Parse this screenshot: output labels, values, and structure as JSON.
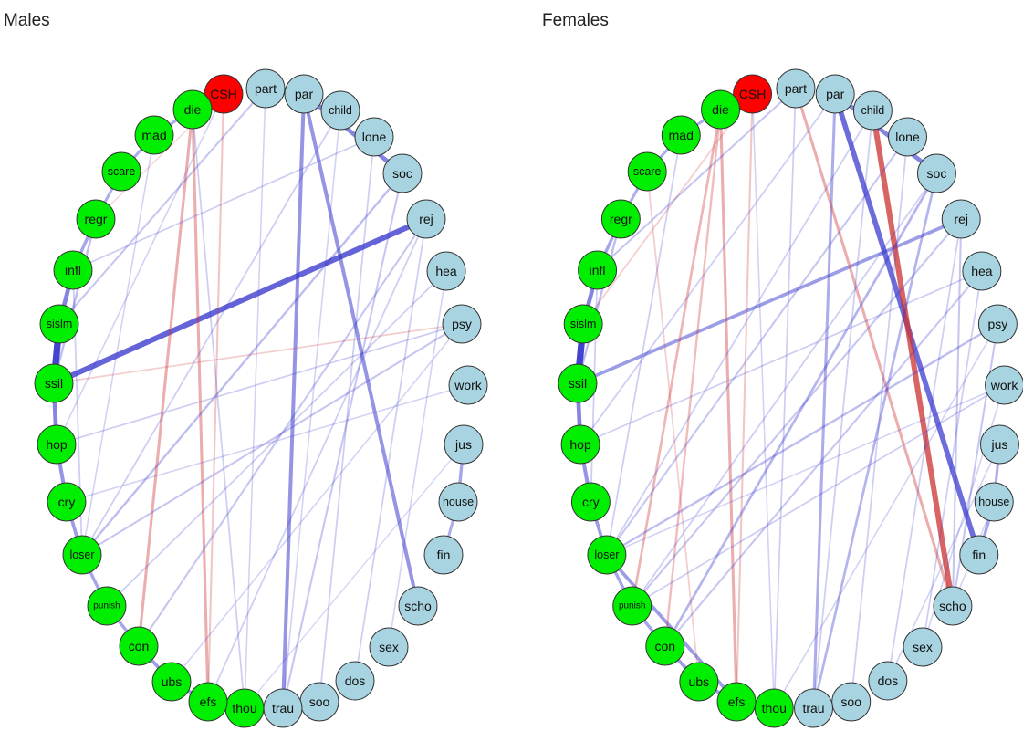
{
  "panels": [
    {
      "id": "males",
      "title": "Males"
    },
    {
      "id": "females",
      "title": "Females"
    }
  ],
  "colors": {
    "csh_node": "#ff0000",
    "left_group_node": "#00ee00",
    "right_group_node": "#a8d3e0",
    "positive_edge": "#3333cc",
    "negative_edge": "#cc3333",
    "node_border": "#333333"
  },
  "nodes": [
    {
      "id": "CSH",
      "label": "CSH",
      "group": "csh"
    },
    {
      "id": "part",
      "label": "part",
      "group": "right"
    },
    {
      "id": "par",
      "label": "par",
      "group": "right"
    },
    {
      "id": "child",
      "label": "child",
      "group": "right"
    },
    {
      "id": "lone",
      "label": "lone",
      "group": "right"
    },
    {
      "id": "soc",
      "label": "soc",
      "group": "right"
    },
    {
      "id": "rej",
      "label": "rej",
      "group": "right"
    },
    {
      "id": "hea",
      "label": "hea",
      "group": "right"
    },
    {
      "id": "psy",
      "label": "psy",
      "group": "right"
    },
    {
      "id": "work",
      "label": "work",
      "group": "right"
    },
    {
      "id": "jus",
      "label": "jus",
      "group": "right"
    },
    {
      "id": "house",
      "label": "house",
      "group": "right"
    },
    {
      "id": "fin",
      "label": "fin",
      "group": "right"
    },
    {
      "id": "scho",
      "label": "scho",
      "group": "right"
    },
    {
      "id": "sex",
      "label": "sex",
      "group": "right"
    },
    {
      "id": "dos",
      "label": "dos",
      "group": "right"
    },
    {
      "id": "soo",
      "label": "soo",
      "group": "right"
    },
    {
      "id": "trau",
      "label": "trau",
      "group": "right"
    },
    {
      "id": "thou",
      "label": "thou",
      "group": "left"
    },
    {
      "id": "efs",
      "label": "efs",
      "group": "left"
    },
    {
      "id": "ubs",
      "label": "ubs",
      "group": "left"
    },
    {
      "id": "con",
      "label": "con",
      "group": "left"
    },
    {
      "id": "punish",
      "label": "punish",
      "group": "left"
    },
    {
      "id": "loser",
      "label": "loser",
      "group": "left"
    },
    {
      "id": "cry",
      "label": "cry",
      "group": "left"
    },
    {
      "id": "hop",
      "label": "hop",
      "group": "left"
    },
    {
      "id": "ssil",
      "label": "ssil",
      "group": "left"
    },
    {
      "id": "sislm",
      "label": "sislm",
      "group": "left"
    },
    {
      "id": "infl",
      "label": "infl",
      "group": "left"
    },
    {
      "id": "regr",
      "label": "regr",
      "group": "left"
    },
    {
      "id": "scare",
      "label": "scare",
      "group": "left"
    },
    {
      "id": "mad",
      "label": "mad",
      "group": "left"
    },
    {
      "id": "die",
      "label": "die",
      "group": "left"
    }
  ],
  "edges": {
    "males": [
      {
        "source": "ssil",
        "target": "rej",
        "weight": 0.8,
        "sign": "positive"
      },
      {
        "source": "par",
        "target": "soc",
        "weight": 0.6,
        "sign": "positive"
      },
      {
        "source": "par",
        "target": "trau",
        "weight": 0.5,
        "sign": "positive"
      },
      {
        "source": "par",
        "target": "scho",
        "weight": 0.5,
        "sign": "positive"
      },
      {
        "source": "sislm",
        "target": "ssil",
        "weight": 1.0,
        "sign": "positive"
      },
      {
        "source": "ssil",
        "target": "hop",
        "weight": 0.6,
        "sign": "positive"
      },
      {
        "source": "infl",
        "target": "sislm",
        "weight": 0.6,
        "sign": "positive"
      },
      {
        "source": "hop",
        "target": "cry",
        "weight": 0.5,
        "sign": "positive"
      },
      {
        "source": "cry",
        "target": "loser",
        "weight": 0.45,
        "sign": "positive"
      },
      {
        "source": "loser",
        "target": "punish",
        "weight": 0.4,
        "sign": "positive"
      },
      {
        "source": "punish",
        "target": "con",
        "weight": 0.4,
        "sign": "positive"
      },
      {
        "source": "con",
        "target": "ubs",
        "weight": 0.45,
        "sign": "positive"
      },
      {
        "source": "ubs",
        "target": "efs",
        "weight": 0.45,
        "sign": "positive"
      },
      {
        "source": "efs",
        "target": "thou",
        "weight": 0.45,
        "sign": "positive"
      },
      {
        "source": "regr",
        "target": "infl",
        "weight": 0.4,
        "sign": "positive"
      },
      {
        "source": "scare",
        "target": "regr",
        "weight": 0.35,
        "sign": "positive"
      },
      {
        "source": "mad",
        "target": "scare",
        "weight": 0.35,
        "sign": "positive"
      },
      {
        "source": "die",
        "target": "mad",
        "weight": 0.35,
        "sign": "positive"
      },
      {
        "source": "jus",
        "target": "house",
        "weight": 0.4,
        "sign": "positive"
      },
      {
        "source": "house",
        "target": "fin",
        "weight": 0.35,
        "sign": "positive"
      },
      {
        "source": "die",
        "target": "con",
        "weight": 0.35,
        "sign": "negative"
      },
      {
        "source": "die",
        "target": "efs",
        "weight": 0.35,
        "sign": "negative"
      },
      {
        "source": "CSH",
        "target": "efs",
        "weight": 0.2,
        "sign": "negative"
      },
      {
        "source": "ssil",
        "target": "psy",
        "weight": 0.15,
        "sign": "negative"
      },
      {
        "source": "CSH",
        "target": "regr",
        "weight": 0.1,
        "sign": "negative"
      },
      {
        "source": "part",
        "target": "sislm",
        "weight": 0.2,
        "sign": "positive"
      },
      {
        "source": "soc",
        "target": "loser",
        "weight": 0.25,
        "sign": "positive"
      },
      {
        "source": "rej",
        "target": "con",
        "weight": 0.2,
        "sign": "positive"
      },
      {
        "source": "lone",
        "target": "infl",
        "weight": 0.15,
        "sign": "positive"
      },
      {
        "source": "child",
        "target": "loser",
        "weight": 0.15,
        "sign": "positive"
      },
      {
        "source": "psy",
        "target": "loser",
        "weight": 0.2,
        "sign": "positive"
      },
      {
        "source": "hea",
        "target": "punish",
        "weight": 0.15,
        "sign": "positive"
      },
      {
        "source": "psy",
        "target": "hop",
        "weight": 0.15,
        "sign": "positive"
      },
      {
        "source": "work",
        "target": "cry",
        "weight": 0.12,
        "sign": "positive"
      },
      {
        "source": "soc",
        "target": "trau",
        "weight": 0.2,
        "sign": "positive"
      },
      {
        "source": "lone",
        "target": "soo",
        "weight": 0.15,
        "sign": "positive"
      },
      {
        "source": "rej",
        "target": "dos",
        "weight": 0.15,
        "sign": "positive"
      },
      {
        "source": "part",
        "target": "thou",
        "weight": 0.12,
        "sign": "positive"
      },
      {
        "source": "CSH",
        "target": "hop",
        "weight": 0.12,
        "sign": "positive"
      },
      {
        "source": "die",
        "target": "thou",
        "weight": 0.15,
        "sign": "positive"
      },
      {
        "source": "regr",
        "target": "ssil",
        "weight": 0.25,
        "sign": "positive"
      },
      {
        "source": "infl",
        "target": "loser",
        "weight": 0.15,
        "sign": "positive"
      },
      {
        "source": "mad",
        "target": "loser",
        "weight": 0.12,
        "sign": "positive"
      },
      {
        "source": "hea",
        "target": "sex",
        "weight": 0.12,
        "sign": "positive"
      },
      {
        "source": "rej",
        "target": "efs",
        "weight": 0.15,
        "sign": "positive"
      },
      {
        "source": "child",
        "target": "trau",
        "weight": 0.12,
        "sign": "positive"
      },
      {
        "source": "jus",
        "target": "thou",
        "weight": 0.1,
        "sign": "positive"
      },
      {
        "source": "psy",
        "target": "ubs",
        "weight": 0.12,
        "sign": "positive"
      }
    ],
    "females": [
      {
        "source": "ssil",
        "target": "rej",
        "weight": 0.45,
        "sign": "positive"
      },
      {
        "source": "par",
        "target": "soc",
        "weight": 0.6,
        "sign": "positive"
      },
      {
        "source": "par",
        "target": "fin",
        "weight": 0.75,
        "sign": "positive"
      },
      {
        "source": "par",
        "target": "trau",
        "weight": 0.35,
        "sign": "positive"
      },
      {
        "source": "child",
        "target": "scho",
        "weight": 0.8,
        "sign": "negative"
      },
      {
        "source": "part",
        "target": "scho",
        "weight": 0.35,
        "sign": "negative"
      },
      {
        "source": "sislm",
        "target": "ssil",
        "weight": 1.0,
        "sign": "positive"
      },
      {
        "source": "ssil",
        "target": "hop",
        "weight": 0.6,
        "sign": "positive"
      },
      {
        "source": "infl",
        "target": "sislm",
        "weight": 0.6,
        "sign": "positive"
      },
      {
        "source": "hop",
        "target": "cry",
        "weight": 0.5,
        "sign": "positive"
      },
      {
        "source": "cry",
        "target": "loser",
        "weight": 0.45,
        "sign": "positive"
      },
      {
        "source": "loser",
        "target": "punish",
        "weight": 0.4,
        "sign": "positive"
      },
      {
        "source": "punish",
        "target": "con",
        "weight": 0.4,
        "sign": "positive"
      },
      {
        "source": "con",
        "target": "ubs",
        "weight": 0.45,
        "sign": "positive"
      },
      {
        "source": "ubs",
        "target": "efs",
        "weight": 0.45,
        "sign": "positive"
      },
      {
        "source": "loser",
        "target": "efs",
        "weight": 0.45,
        "sign": "positive"
      },
      {
        "source": "regr",
        "target": "infl",
        "weight": 0.4,
        "sign": "positive"
      },
      {
        "source": "scare",
        "target": "regr",
        "weight": 0.35,
        "sign": "positive"
      },
      {
        "source": "mad",
        "target": "scare",
        "weight": 0.35,
        "sign": "positive"
      },
      {
        "source": "die",
        "target": "mad",
        "weight": 0.35,
        "sign": "positive"
      },
      {
        "source": "house",
        "target": "fin",
        "weight": 0.4,
        "sign": "positive"
      },
      {
        "source": "jus",
        "target": "house",
        "weight": 0.35,
        "sign": "positive"
      },
      {
        "source": "die",
        "target": "punish",
        "weight": 0.3,
        "sign": "negative"
      },
      {
        "source": "die",
        "target": "efs",
        "weight": 0.35,
        "sign": "negative"
      },
      {
        "source": "die",
        "target": "con",
        "weight": 0.25,
        "sign": "negative"
      },
      {
        "source": "CSH",
        "target": "efs",
        "weight": 0.2,
        "sign": "negative"
      },
      {
        "source": "CSH",
        "target": "sislm",
        "weight": 0.15,
        "sign": "negative"
      },
      {
        "source": "soc",
        "target": "con",
        "weight": 0.3,
        "sign": "positive"
      },
      {
        "source": "rej",
        "target": "punish",
        "weight": 0.2,
        "sign": "positive"
      },
      {
        "source": "lone",
        "target": "loser",
        "weight": 0.2,
        "sign": "positive"
      },
      {
        "source": "soc",
        "target": "trau",
        "weight": 0.3,
        "sign": "positive"
      },
      {
        "source": "psy",
        "target": "loser",
        "weight": 0.25,
        "sign": "positive"
      },
      {
        "source": "hea",
        "target": "con",
        "weight": 0.2,
        "sign": "positive"
      },
      {
        "source": "rej",
        "target": "scho",
        "weight": 0.2,
        "sign": "positive"
      },
      {
        "source": "psy",
        "target": "scho",
        "weight": 0.2,
        "sign": "positive"
      },
      {
        "source": "part",
        "target": "infl",
        "weight": 0.2,
        "sign": "positive"
      },
      {
        "source": "child",
        "target": "loser",
        "weight": 0.15,
        "sign": "positive"
      },
      {
        "source": "work",
        "target": "punish",
        "weight": 0.15,
        "sign": "positive"
      },
      {
        "source": "regr",
        "target": "ssil",
        "weight": 0.25,
        "sign": "positive"
      },
      {
        "source": "infl",
        "target": "cry",
        "weight": 0.15,
        "sign": "positive"
      },
      {
        "source": "hea",
        "target": "hop",
        "weight": 0.15,
        "sign": "positive"
      },
      {
        "source": "lone",
        "target": "soo",
        "weight": 0.15,
        "sign": "positive"
      },
      {
        "source": "rej",
        "target": "dos",
        "weight": 0.15,
        "sign": "positive"
      },
      {
        "source": "part",
        "target": "thou",
        "weight": 0.15,
        "sign": "positive"
      },
      {
        "source": "hea",
        "target": "sex",
        "weight": 0.15,
        "sign": "positive"
      },
      {
        "source": "work",
        "target": "sex",
        "weight": 0.12,
        "sign": "positive"
      },
      {
        "source": "jus",
        "target": "dos",
        "weight": 0.12,
        "sign": "positive"
      },
      {
        "source": "child",
        "target": "trau",
        "weight": 0.15,
        "sign": "positive"
      },
      {
        "source": "mad",
        "target": "loser",
        "weight": 0.15,
        "sign": "positive"
      },
      {
        "source": "scare",
        "target": "ubs",
        "weight": 0.15,
        "sign": "negative"
      },
      {
        "source": "CSH",
        "target": "thou",
        "weight": 0.12,
        "sign": "positive"
      },
      {
        "source": "par",
        "target": "hop",
        "weight": 0.15,
        "sign": "positive"
      },
      {
        "source": "soc",
        "target": "punish",
        "weight": 0.15,
        "sign": "positive"
      },
      {
        "source": "work",
        "target": "loser",
        "weight": 0.12,
        "sign": "positive"
      },
      {
        "source": "house",
        "target": "scho",
        "weight": 0.12,
        "sign": "positive"
      },
      {
        "source": "psy",
        "target": "thou",
        "weight": 0.12,
        "sign": "positive"
      }
    ]
  }
}
